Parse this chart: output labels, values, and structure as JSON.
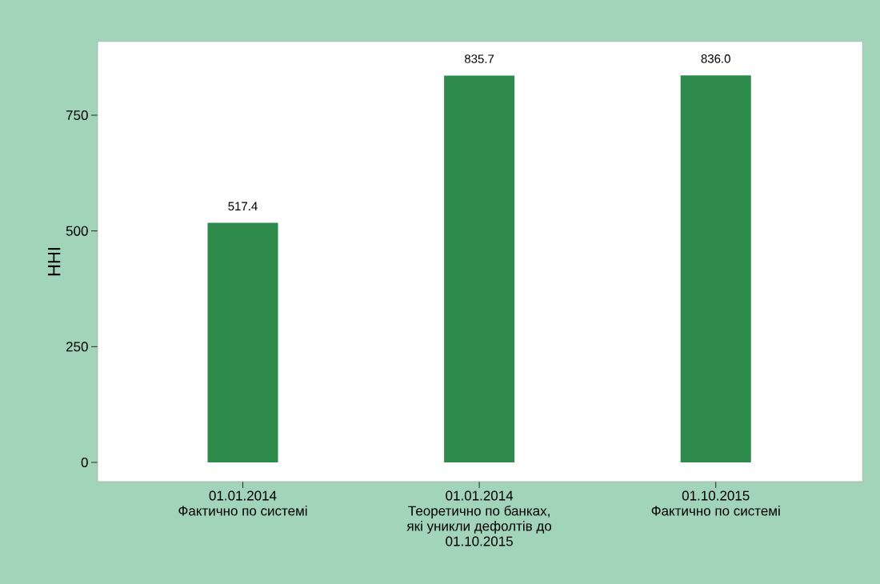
{
  "chart_data": {
    "type": "bar",
    "ylabel": "HHI",
    "categories": [
      "01.01.2014\nФактично по системі",
      "01.01.2014\nТеоретично по банках,\nякі уникли дефолтів до\n01.10.2015",
      "01.10.2015\nФактично по системі"
    ],
    "values": [
      517.4,
      835.7,
      836.0
    ],
    "value_labels": [
      "517.4",
      "835.7",
      "836.0"
    ],
    "color": "#2e8b4b",
    "ylim": [
      -41.5,
      909
    ],
    "yticks": [
      0,
      250,
      500,
      750
    ],
    "grid": false
  }
}
